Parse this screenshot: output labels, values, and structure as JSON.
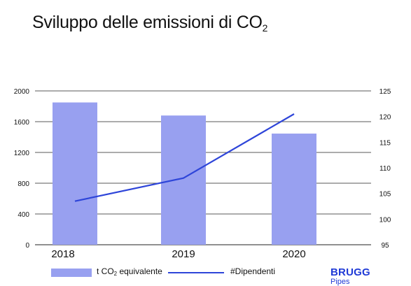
{
  "title": {
    "main": "Sviluppo delle emissioni di CO",
    "sub": "2"
  },
  "legend": {
    "bar_label_prefix": "t CO",
    "bar_label_sub": "2",
    "bar_label_suffix": " equivalente",
    "line_label": "#Dipendenti"
  },
  "logo": {
    "brand": "BRUGG",
    "sub": "Pipes"
  },
  "colors": {
    "bar": "#98a0f0",
    "line": "#2e45d9",
    "grid": "#222222"
  },
  "chart_data": {
    "type": "bar",
    "categories": [
      "2018",
      "2019",
      "2020"
    ],
    "series": [
      {
        "name": "t CO2 equivalente",
        "type": "bar",
        "axis": "left",
        "values": [
          1850,
          1680,
          1445
        ]
      },
      {
        "name": "#Dipendenti",
        "type": "line",
        "axis": "right",
        "values": [
          103.5,
          108,
          120.5
        ]
      }
    ],
    "y_left": {
      "lim": [
        0,
        2000
      ],
      "ticks": [
        0,
        400,
        800,
        1200,
        1600,
        2000
      ]
    },
    "y_right": {
      "lim": [
        95,
        125
      ],
      "ticks": [
        95,
        100,
        105,
        110,
        115,
        120,
        125
      ]
    },
    "grid": true,
    "legend_position": "bottom"
  }
}
